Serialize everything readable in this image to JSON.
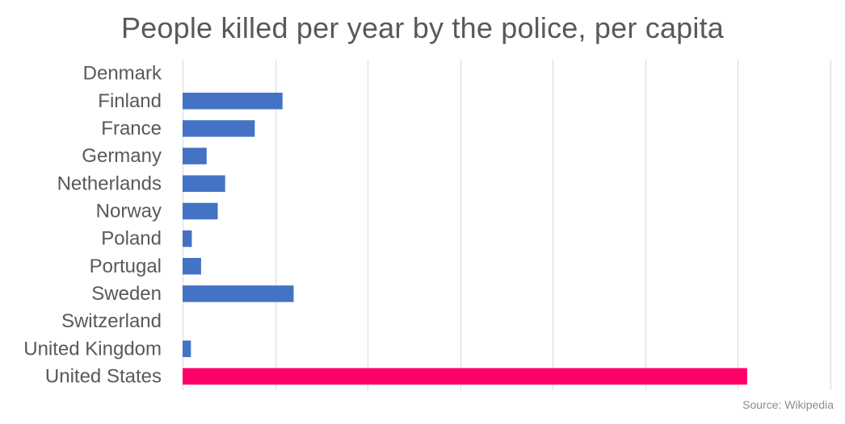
{
  "chart_data": {
    "type": "bar",
    "orientation": "horizontal",
    "title": "People killed per year by the police, per capita",
    "xlabel": "",
    "ylabel": "",
    "categories": [
      "Denmark",
      "Finland",
      "France",
      "Germany",
      "Netherlands",
      "Norway",
      "Poland",
      "Portugal",
      "Sweden",
      "Switzerland",
      "United Kingdom",
      "United States"
    ],
    "values": [
      0,
      0.54,
      0.39,
      0.13,
      0.23,
      0.19,
      0.05,
      0.1,
      0.6,
      0,
      0.045,
      3.05
    ],
    "xlim": [
      0,
      3.5
    ],
    "grid": true,
    "bar_colors": {
      "default": "#4472c4",
      "highlight": "#ff0066"
    },
    "highlight_category": "United States",
    "source": "Source: Wikipedia"
  }
}
